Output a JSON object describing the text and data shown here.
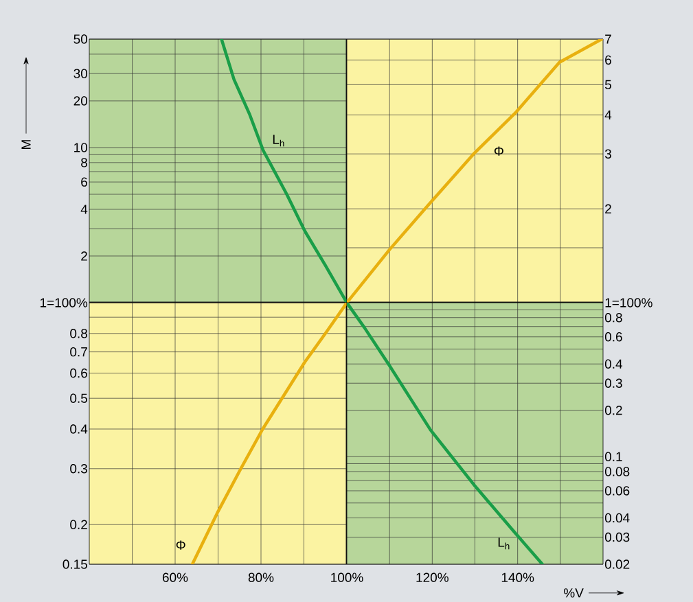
{
  "chart_data": [
    {
      "type": "line",
      "ylabel": "M",
      "log": "y",
      "grid": true,
      "tick_labels": "y",
      "xlim": [
        40,
        100
      ],
      "xticks": [
        {
          "value": 50,
          "label": null
        },
        {
          "value": 60,
          "label": null
        },
        {
          "value": 70,
          "label": null
        },
        {
          "value": 80,
          "label": null
        },
        {
          "value": 90,
          "label": null
        }
      ],
      "ylim": [
        1,
        50
      ],
      "yticks": [
        2,
        {
          "value": 3,
          "label": null
        },
        4,
        {
          "value": 5,
          "label": null
        },
        6,
        {
          "value": 7,
          "label": null
        },
        8,
        {
          "value": 9,
          "label": null
        },
        10,
        20,
        30,
        {
          "value": 40,
          "label": null
        },
        50
      ],
      "series": [
        {
          "name": "L$_{h}$",
          "color": "#1a9e48",
          "x": [
            70.8,
            73.7,
            77.3,
            80.5,
            86,
            90.2,
            95,
            100
          ],
          "values": [
            50,
            27.5,
            16.5,
            9.6,
            5,
            2.9,
            1.74,
            1
          ]
        }
      ]
    },
    {
      "type": "line",
      "log": "y2",
      "grid": true,
      "tick_labels": "y",
      "xlim": [
        100,
        160
      ],
      "xticks": [
        {
          "value": 110,
          "label": null
        },
        {
          "value": 120,
          "label": null
        },
        {
          "value": 130,
          "label": null
        },
        {
          "value": 140,
          "label": null
        },
        {
          "value": 150,
          "label": null
        }
      ],
      "y2lim": [
        1,
        7
      ],
      "y2ticks": [
        {
          "value": 1,
          "label": "1=100%"
        },
        {
          "value": 1.5,
          "label": null
        },
        2,
        3,
        4,
        5,
        6,
        7
      ],
      "series": [
        {
          "name": "Φ",
          "color": "#e8b00f",
          "axis": "y2",
          "x": [
            100,
            110,
            119,
            129.7,
            139.4,
            149.8,
            159.7
          ],
          "values": [
            1,
            1.48,
            2.05,
            3.0,
            4.05,
            5.9,
            7
          ]
        }
      ]
    },
    {
      "type": "line",
      "log": "y",
      "grid": true,
      "xlim": [
        40,
        100
      ],
      "xticks": [
        {
          "value": 50,
          "label": null
        },
        {
          "value": 60,
          "label": "60%"
        },
        {
          "value": 70,
          "label": null
        },
        {
          "value": 80,
          "label": "80%"
        },
        {
          "value": 90,
          "label": null
        },
        {
          "value": 100,
          "label": "100%"
        }
      ],
      "ylim": [
        0.15,
        1
      ],
      "yticks": [
        0.15,
        0.2,
        0.3,
        0.4,
        0.5,
        0.6,
        0.7,
        0.8,
        {
          "value": 0.9,
          "label": null
        },
        {
          "value": 1,
          "label": "1=100%"
        }
      ],
      "series": [
        {
          "name": "Φ",
          "color": "#e8b00f",
          "x": [
            64,
            70,
            75.3,
            80.4,
            90.2,
            95,
            100
          ],
          "values": [
            0.15,
            0.22,
            0.3,
            0.4,
            0.65,
            0.8,
            1
          ]
        }
      ]
    },
    {
      "type": "line",
      "xlabel": "%V",
      "log": "y2",
      "grid": true,
      "xlim": [
        100,
        160
      ],
      "xticks": [
        {
          "value": 110,
          "label": null
        },
        {
          "value": 120,
          "label": "120%"
        },
        {
          "value": 130,
          "label": null
        },
        {
          "value": 140,
          "label": "140%"
        },
        {
          "value": 150,
          "label": null
        }
      ],
      "y2lim": [
        0.02,
        1
      ],
      "y2ticks": [
        0.02,
        0.03,
        0.04,
        {
          "value": 0.05,
          "label": null
        },
        0.06,
        {
          "value": 0.07,
          "label": null
        },
        0.08,
        {
          "value": 0.09,
          "label": null
        },
        0.1,
        0.2,
        0.3,
        0.4,
        {
          "value": 0.5,
          "label": null
        },
        0.6,
        {
          "value": 0.7,
          "label": null
        },
        0.8,
        {
          "value": 0.9,
          "label": null
        }
      ],
      "series": [
        {
          "name": "L$_{h}$",
          "color": "#1a9e48",
          "axis": "y2",
          "x": [
            100,
            104.1,
            110,
            119.6,
            129.7,
            139.4,
            145.8
          ],
          "values": [
            1,
            0.69,
            0.39,
            0.149,
            0.066,
            0.032,
            0.02
          ]
        }
      ]
    }
  ]
}
